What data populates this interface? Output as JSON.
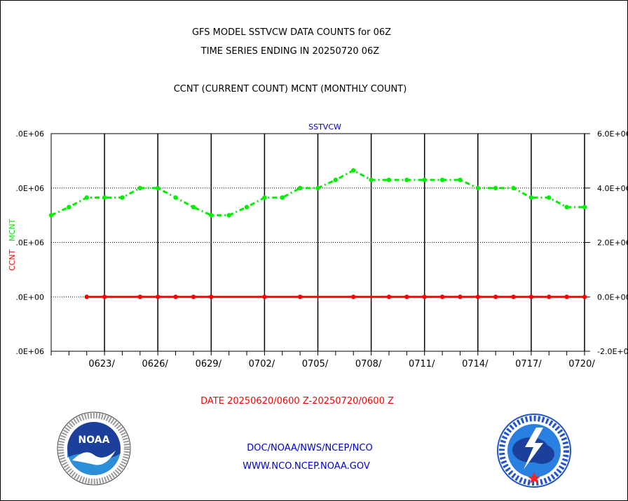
{
  "header": {
    "title_line1": "GFS MODEL SSTVCW DATA COUNTS for 06Z",
    "title_line2": "TIME SERIES ENDING IN 20250720 06Z",
    "subtitle": "CCNT (CURRENT COUNT) MCNT (MONTHLY COUNT)"
  },
  "footer": {
    "date_range": "DATE 20250620/0600 Z-20250720/0600 Z",
    "org_path": "DOC/NOAA/NWS/NCEP/NCO",
    "website": "WWW.NCO.NCEP.NOAA.GOV"
  },
  "logos": {
    "left": "noaa-logo",
    "left_text": "NOAA",
    "right": "nws-logo"
  },
  "colors": {
    "ccnt": "#ff0000",
    "mcnt": "#00ee00",
    "panel_title": "#0000cc",
    "footer_link": "#0000cc",
    "date_range": "#ff0000"
  },
  "chart_data": {
    "type": "line",
    "title": "SSTVCW",
    "xlabel": "",
    "ylabel_left": "CCNT",
    "ylabel_right": "MCNT",
    "x_ticks": [
      "0623/",
      "0626/",
      "0629/",
      "0702/",
      "0705/",
      "0708/",
      "0711/",
      "0714/",
      "0717/",
      "0720/"
    ],
    "y_ticks_left": [
      ".0E+06",
      ".0E+06",
      ".0E+06",
      ".0E+00",
      ".0E+06"
    ],
    "y_ticks_right": [
      "6.0E+06",
      "4.0E+06",
      "2.0E+06",
      "0.0E+00",
      "-2.0E+06"
    ],
    "ylim": [
      -2000000,
      6000000
    ],
    "grid": true,
    "series": [
      {
        "name": "MCNT",
        "color": "#00ee00",
        "style": "dash-dot",
        "x": [
          "0620",
          "0621",
          "0622",
          "0623",
          "0624",
          "0625",
          "0626",
          "0627",
          "0628",
          "0629",
          "0630",
          "0701",
          "0702",
          "0703",
          "0704",
          "0705",
          "0706",
          "0707",
          "0708",
          "0709",
          "0710",
          "0711",
          "0712",
          "0713",
          "0714",
          "0715",
          "0716",
          "0717",
          "0718",
          "0719",
          "0720"
        ],
        "values": [
          3000000,
          3300000,
          3650000,
          3650000,
          3650000,
          4000000,
          4000000,
          3650000,
          3300000,
          3000000,
          3000000,
          3300000,
          3650000,
          3650000,
          4000000,
          4000000,
          4300000,
          4650000,
          4300000,
          4300000,
          4300000,
          4300000,
          4300000,
          4300000,
          4000000,
          4000000,
          4000000,
          3650000,
          3650000,
          3300000,
          3300000
        ]
      },
      {
        "name": "CCNT",
        "color": "#ff0000",
        "style": "solid",
        "x": [
          "0622",
          "0623",
          "0625",
          "0626",
          "0627",
          "0628",
          "0629",
          "0702",
          "0704",
          "0707",
          "0709",
          "0710",
          "0711",
          "0712",
          "0713",
          "0714",
          "0715",
          "0716",
          "0717",
          "0718",
          "0719",
          "0720"
        ],
        "values": [
          0,
          0,
          0,
          0,
          0,
          0,
          0,
          0,
          0,
          0,
          0,
          0,
          0,
          0,
          0,
          0,
          0,
          0,
          0,
          0,
          0,
          0
        ]
      }
    ]
  }
}
